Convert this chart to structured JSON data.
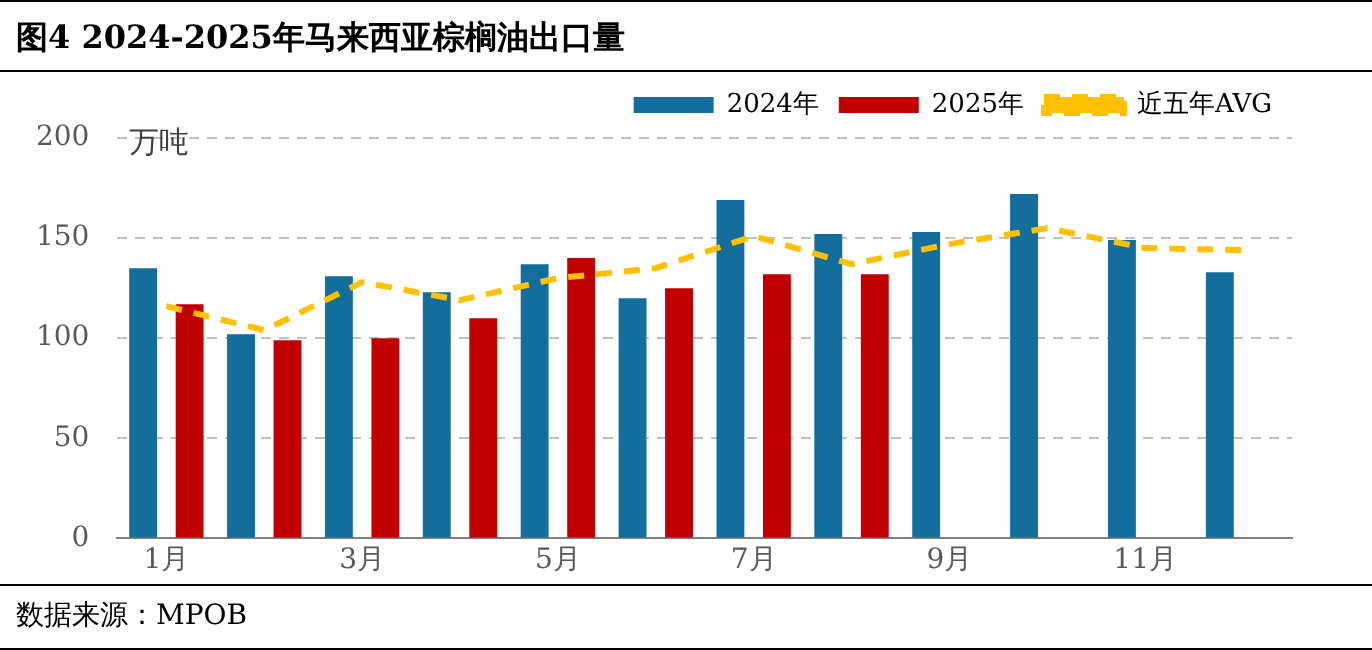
{
  "chart_data": {
    "type": "bar",
    "title": "图4 2024-2025年马来西亚棕榈油出口量",
    "ylabel": "万吨",
    "annotations": [
      "数据来源：MPOB"
    ],
    "categories": [
      "1月",
      null,
      "3月",
      null,
      "5月",
      null,
      "7月",
      null,
      "9月",
      null,
      "11月",
      null
    ],
    "series": [
      {
        "name": "2024年",
        "color": "#136e9d",
        "values": [
          135,
          102,
          131,
          123,
          137,
          120,
          169,
          152,
          153,
          172,
          149,
          133
        ]
      },
      {
        "name": "2025年",
        "color": "#c00000",
        "values": [
          117,
          99,
          100,
          110,
          140,
          125,
          132,
          132,
          null,
          null,
          null,
          null
        ]
      },
      {
        "name": "近五年AVG",
        "type": "line",
        "color": "#ffc000",
        "line_style": "dashed",
        "marker": "none",
        "values": [
          116,
          104,
          128,
          119,
          130,
          135,
          151,
          137,
          147,
          155,
          145,
          144
        ]
      }
    ],
    "ylim": [
      0,
      200
    ],
    "yticks": [
      0,
      50,
      100,
      150,
      200
    ],
    "grid": "y",
    "legend": "top right"
  }
}
